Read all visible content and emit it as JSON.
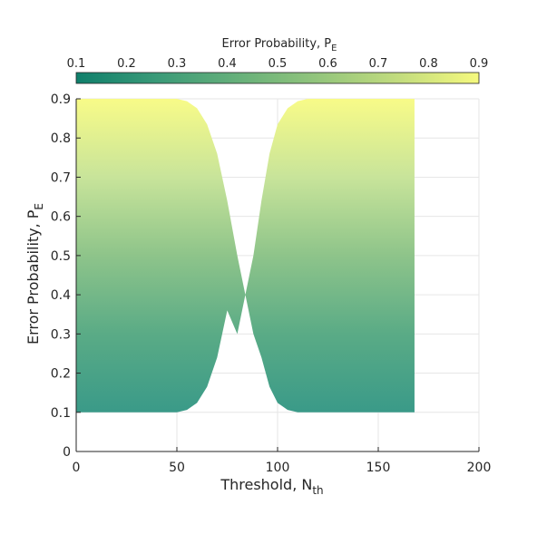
{
  "chart_data": {
    "type": "area",
    "colorbar": {
      "label_main": "Error Probability, P",
      "label_sub": "E",
      "range": [
        0.1,
        0.9
      ],
      "ticks": [
        "0.1",
        "0.2",
        "0.3",
        "0.4",
        "0.5",
        "0.6",
        "0.7",
        "0.8",
        "0.9"
      ],
      "colormap": [
        "#0f7f6b",
        "#3a9a78",
        "#66b07a",
        "#93c57c",
        "#c2dc7e",
        "#f5f97e"
      ]
    },
    "xaxis": {
      "label_main": "Threshold, N",
      "label_sub": "th",
      "lim": [
        0,
        200
      ],
      "ticks": [
        0,
        50,
        100,
        150,
        200
      ],
      "tick_labels": [
        "0",
        "50",
        "100",
        "150",
        "200"
      ]
    },
    "yaxis": {
      "label_main": "Error Probability, P",
      "label_sub": "E",
      "lim": [
        0,
        0.9
      ],
      "ticks": [
        0,
        0.1,
        0.2,
        0.3,
        0.4,
        0.5,
        0.6,
        0.7,
        0.8,
        0.9
      ],
      "tick_labels": [
        "0",
        "0.1",
        "0.2",
        "0.3",
        "0.4",
        "0.5",
        "0.6",
        "0.7",
        "0.8",
        "0.9"
      ]
    },
    "grid": true,
    "series": [
      {
        "x": [
          0,
          50,
          55,
          60,
          65,
          70,
          75,
          80,
          84,
          88,
          92,
          96,
          100,
          105,
          110,
          115,
          120,
          168
        ],
        "upper": [
          0.9,
          0.9,
          0.894,
          0.876,
          0.835,
          0.76,
          0.64,
          0.5,
          0.4,
          0.5,
          0.64,
          0.76,
          0.835,
          0.876,
          0.894,
          0.9,
          0.9,
          0.9
        ],
        "lower": [
          0.1,
          0.1,
          0.106,
          0.124,
          0.165,
          0.24,
          0.36,
          0.3,
          0.4,
          0.3,
          0.24,
          0.165,
          0.124,
          0.106,
          0.1,
          0.1,
          0.1,
          0.1
        ]
      }
    ]
  }
}
